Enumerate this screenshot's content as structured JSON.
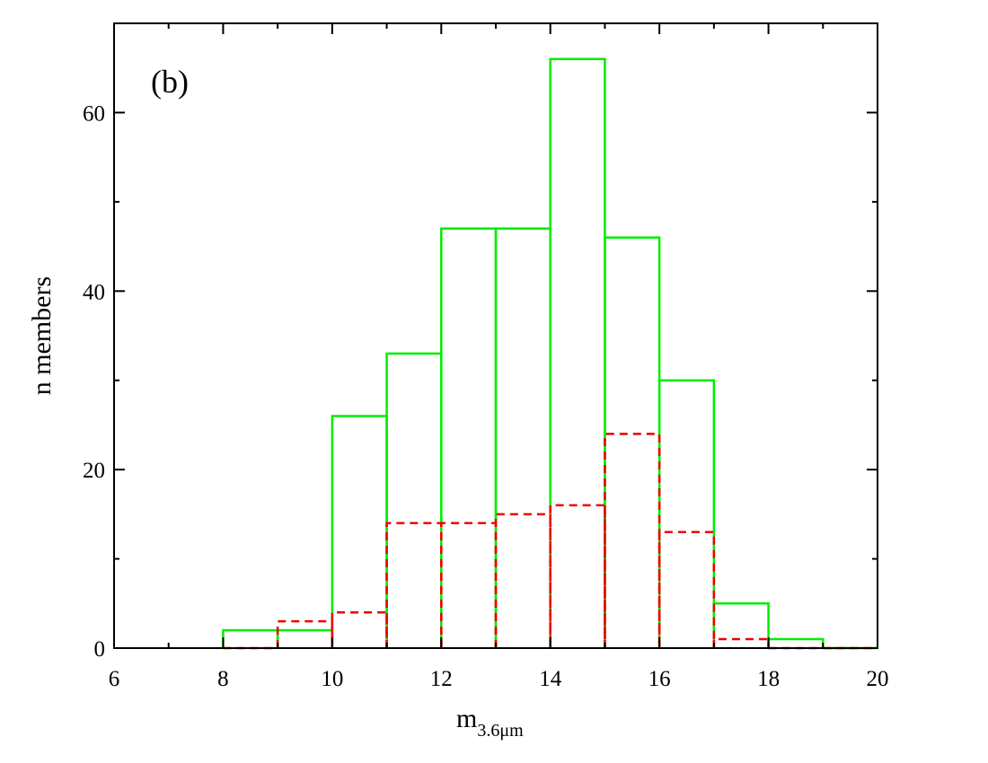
{
  "chart_data": {
    "type": "bar",
    "panel_label": "(b)",
    "xlabel_main": "m",
    "xlabel_sub": "3.6μm",
    "ylabel": "n members",
    "xlim": [
      6,
      20
    ],
    "ylim": [
      0,
      70
    ],
    "x_ticks": [
      6,
      8,
      10,
      12,
      14,
      16,
      18,
      20
    ],
    "y_ticks": [
      0,
      20,
      40,
      60
    ],
    "grid": false,
    "bin_edges": [
      8,
      9,
      10,
      11,
      12,
      13,
      14,
      15,
      16,
      17,
      18,
      19,
      20
    ],
    "series": [
      {
        "style": "solid",
        "color": "#00ee00",
        "values": [
          2,
          2,
          26,
          33,
          47,
          47,
          66,
          46,
          30,
          5,
          1,
          0
        ]
      },
      {
        "style": "dashed",
        "color": "#ee0000",
        "values": [
          0,
          3,
          4,
          14,
          14,
          15,
          16,
          24,
          13,
          1,
          0,
          0
        ]
      }
    ]
  }
}
